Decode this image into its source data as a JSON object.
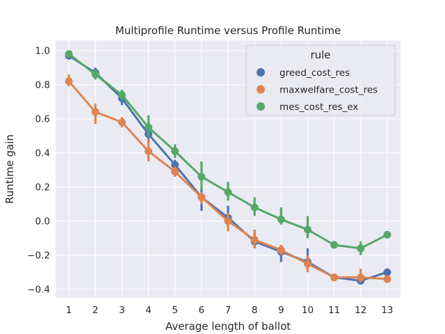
{
  "chart_data": {
    "type": "line",
    "title": "Multiprofile Runtime versus Profile Runtime",
    "xlabel": "Average length of ballot",
    "ylabel": "Runtime gain",
    "categories": [
      "1",
      "2",
      "3",
      "4",
      "5",
      "6",
      "7",
      "8",
      "9",
      "10",
      "11",
      "12",
      "13"
    ],
    "y_ticks": [
      -0.4,
      -0.2,
      0.0,
      0.2,
      0.4,
      0.6,
      0.8,
      1.0
    ],
    "y_tick_labels": [
      "−0.4",
      "−0.2",
      "0.0",
      "0.2",
      "0.4",
      "0.6",
      "0.8",
      "1.0"
    ],
    "ylim": [
      -0.45,
      1.06
    ],
    "grid": true,
    "legend": {
      "title": "rule",
      "placement": "top-right"
    },
    "series": [
      {
        "name": "greed_cost_res",
        "color": "#4c72b0",
        "values": [
          0.97,
          0.87,
          0.72,
          0.51,
          0.33,
          0.14,
          0.02,
          -0.12,
          -0.18,
          -0.24,
          -0.33,
          -0.35,
          -0.3
        ],
        "ci_low": [
          0.95,
          0.84,
          0.68,
          0.46,
          0.3,
          0.06,
          -0.04,
          -0.16,
          -0.24,
          -0.28,
          -0.35,
          -0.37,
          -0.31
        ],
        "ci_high": [
          0.99,
          0.9,
          0.75,
          0.55,
          0.36,
          0.2,
          0.09,
          -0.07,
          -0.14,
          -0.16,
          -0.31,
          -0.33,
          -0.29
        ]
      },
      {
        "name": "maxwelfare_cost_res",
        "color": "#dd8452",
        "values": [
          0.82,
          0.64,
          0.58,
          0.41,
          0.29,
          0.14,
          0.0,
          -0.11,
          -0.17,
          -0.25,
          -0.33,
          -0.33,
          -0.34
        ],
        "ci_low": [
          0.79,
          0.57,
          0.55,
          0.35,
          0.26,
          0.1,
          -0.06,
          -0.16,
          -0.2,
          -0.3,
          -0.35,
          -0.36,
          -0.35
        ],
        "ci_high": [
          0.86,
          0.69,
          0.61,
          0.48,
          0.32,
          0.17,
          0.05,
          -0.05,
          -0.14,
          -0.2,
          -0.31,
          -0.28,
          -0.33
        ]
      },
      {
        "name": "mes_cost_res_ex",
        "color": "#55a868",
        "values": [
          0.98,
          0.86,
          0.74,
          0.55,
          0.41,
          0.26,
          0.17,
          0.08,
          0.01,
          -0.05,
          -0.14,
          -0.16,
          -0.08
        ],
        "ci_low": [
          0.96,
          0.83,
          0.71,
          0.49,
          0.37,
          0.18,
          0.12,
          0.03,
          -0.02,
          -0.1,
          -0.15,
          -0.2,
          -0.09
        ],
        "ci_high": [
          0.99,
          0.89,
          0.77,
          0.62,
          0.45,
          0.35,
          0.23,
          0.14,
          0.08,
          0.03,
          -0.13,
          -0.12,
          -0.07
        ]
      }
    ]
  }
}
